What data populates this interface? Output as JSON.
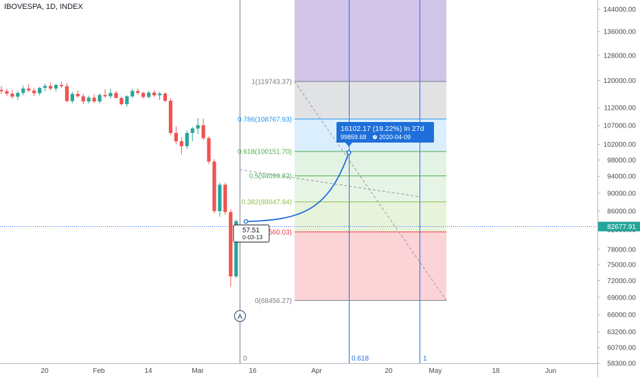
{
  "symbol_title": "IBOVESPA, 1D, INDEX",
  "colors": {
    "up": "#26a69a",
    "down": "#ef5350",
    "projection": "#1e6fd9",
    "price_line": "#2962ff",
    "bubble": "#1e6fd9"
  },
  "chart_data": {
    "type": "candlestick",
    "title": "IBOVESPA, 1D, INDEX",
    "y_axis_ticks": [
      "144000.00",
      "136000.00",
      "128000.00",
      "120000.00",
      "112000.00",
      "107000.00",
      "102000.00",
      "98000.00",
      "94000.00",
      "90000.00",
      "86000.00",
      "82000.00",
      "78000.00",
      "75000.00",
      "72000.00",
      "69000.00",
      "66000.00",
      "63200.00",
      "60700.00",
      "58300.00"
    ],
    "x_axis_ticks": [
      "20",
      "Feb",
      "14",
      "Mar",
      "16",
      "Apr",
      "20",
      "May",
      "18",
      "Jun"
    ],
    "ylim": [
      56500,
      149000
    ],
    "log_scale": true,
    "current_price": "82677.91",
    "candles": [
      {
        "o": 117200,
        "h": 118400,
        "l": 116000,
        "c": 116800
      },
      {
        "o": 116800,
        "h": 117600,
        "l": 115400,
        "c": 116100
      },
      {
        "o": 116100,
        "h": 117100,
        "l": 114600,
        "c": 115200
      },
      {
        "o": 115200,
        "h": 116900,
        "l": 114200,
        "c": 116300
      },
      {
        "o": 116300,
        "h": 118500,
        "l": 115600,
        "c": 117600
      },
      {
        "o": 117600,
        "h": 118900,
        "l": 116500,
        "c": 117000
      },
      {
        "o": 117000,
        "h": 117800,
        "l": 115400,
        "c": 116200
      },
      {
        "o": 116200,
        "h": 118100,
        "l": 115600,
        "c": 117800
      },
      {
        "o": 117800,
        "h": 119100,
        "l": 116800,
        "c": 118400
      },
      {
        "o": 118400,
        "h": 119400,
        "l": 117100,
        "c": 117600
      },
      {
        "o": 117600,
        "h": 119000,
        "l": 116700,
        "c": 118700
      },
      {
        "o": 118700,
        "h": 119600,
        "l": 117900,
        "c": 118300
      },
      {
        "o": 118300,
        "h": 119300,
        "l": 113500,
        "c": 113900
      },
      {
        "o": 113900,
        "h": 116600,
        "l": 113300,
        "c": 116000
      },
      {
        "o": 116000,
        "h": 117100,
        "l": 114900,
        "c": 115300
      },
      {
        "o": 115300,
        "h": 116000,
        "l": 113000,
        "c": 113800
      },
      {
        "o": 113800,
        "h": 115500,
        "l": 113200,
        "c": 114900
      },
      {
        "o": 114900,
        "h": 115900,
        "l": 113400,
        "c": 113800
      },
      {
        "o": 113800,
        "h": 116200,
        "l": 113200,
        "c": 115700
      },
      {
        "o": 115700,
        "h": 117400,
        "l": 114900,
        "c": 115300
      },
      {
        "o": 115300,
        "h": 117600,
        "l": 114600,
        "c": 116300
      },
      {
        "o": 116300,
        "h": 116900,
        "l": 114700,
        "c": 114800
      },
      {
        "o": 114800,
        "h": 115300,
        "l": 112600,
        "c": 113000
      },
      {
        "o": 113000,
        "h": 115600,
        "l": 112300,
        "c": 115300
      },
      {
        "o": 115300,
        "h": 117500,
        "l": 114800,
        "c": 116900
      },
      {
        "o": 116900,
        "h": 117600,
        "l": 115800,
        "c": 116300
      },
      {
        "o": 116300,
        "h": 116700,
        "l": 114600,
        "c": 115100
      },
      {
        "o": 115100,
        "h": 116900,
        "l": 114600,
        "c": 116400
      },
      {
        "o": 116400,
        "h": 117100,
        "l": 115100,
        "c": 115600
      },
      {
        "o": 115600,
        "h": 116600,
        "l": 114200,
        "c": 116100
      },
      {
        "o": 116100,
        "h": 116500,
        "l": 113600,
        "c": 114000
      },
      {
        "o": 114000,
        "h": 114700,
        "l": 104400,
        "c": 105000
      },
      {
        "o": 105000,
        "h": 106800,
        "l": 102100,
        "c": 102800
      },
      {
        "o": 102800,
        "h": 103800,
        "l": 99400,
        "c": 101500
      },
      {
        "o": 101500,
        "h": 105700,
        "l": 100800,
        "c": 105000
      },
      {
        "o": 105000,
        "h": 106600,
        "l": 102800,
        "c": 106200
      },
      {
        "o": 106200,
        "h": 109100,
        "l": 104700,
        "c": 107100
      },
      {
        "o": 107100,
        "h": 108900,
        "l": 103200,
        "c": 103600
      },
      {
        "o": 103600,
        "h": 104100,
        "l": 97000,
        "c": 97600
      },
      {
        "o": 97600,
        "h": 98200,
        "l": 85500,
        "c": 86000
      },
      {
        "o": 86000,
        "h": 92500,
        "l": 84800,
        "c": 92000
      },
      {
        "o": 92000,
        "h": 92500,
        "l": 85200,
        "c": 85800
      },
      {
        "o": 85800,
        "h": 86400,
        "l": 70900,
        "c": 72800
      },
      {
        "o": 72800,
        "h": 84200,
        "l": 72500,
        "c": 83800
      }
    ]
  },
  "fib": {
    "levels": [
      {
        "label": "1(119743.37)",
        "price": 119743.37,
        "color": "#787b86",
        "fill": "rgba(120,123,134,0.22)"
      },
      {
        "label": "0.786(108767.93)",
        "price": 108767.93,
        "color": "#2196f3",
        "fill": "rgba(33,150,243,0.16)"
      },
      {
        "label": "0.618(100151.70)",
        "price": 100151.7,
        "color": "#4caf50",
        "fill": "rgba(76,175,80,0.16)"
      },
      {
        "label": "0.5(94099.82)",
        "price": 94099.82,
        "color": "#4caf50",
        "fill": "rgba(76,175,80,0.14)"
      },
      {
        "label": "0.382(88047.94)",
        "price": 88047.94,
        "color": "#8bc34a",
        "fill": "rgba(139,195,74,0.20)"
      },
      {
        "label": "560.03)",
        "price": 81560.03,
        "color": "#f23645",
        "fill": "rgba(242,54,69,0.22)"
      },
      {
        "label": "0(68456.27)",
        "price": 68456.27,
        "color": "#787b86",
        "fill": ""
      }
    ],
    "top_zone_fill": "rgba(103,58,183,0.30)",
    "time_labels": [
      "0",
      "0.618",
      "1"
    ]
  },
  "projection": {
    "headline": "16102.17 (19.22%) In 27d",
    "sub": "99859.68",
    "date": "2020-04-09",
    "end_price": 99859.68,
    "start_price": 83757.51
  },
  "start_label": {
    "price": "57.51",
    "date": "0-03-13"
  },
  "marker_letter": "A"
}
